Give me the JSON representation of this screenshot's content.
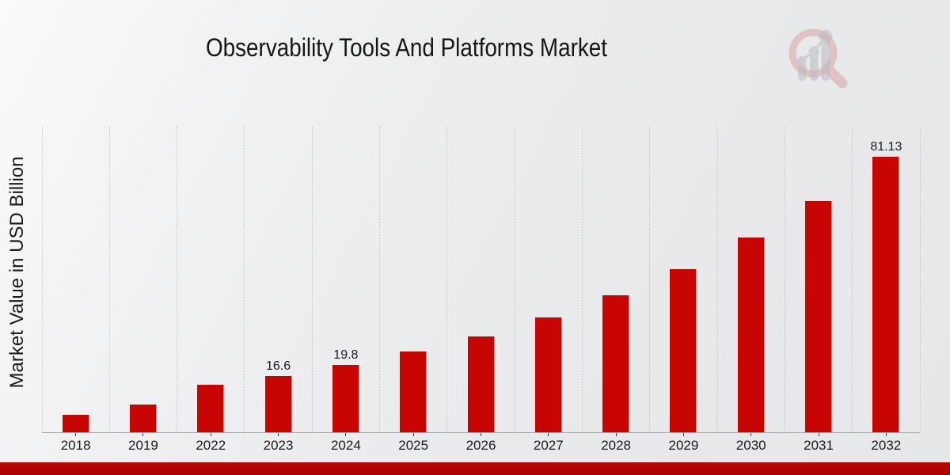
{
  "chart_data": {
    "type": "bar",
    "title": "Observability Tools And Platforms Market",
    "ylabel": "Market Value in USD Billion",
    "xlabel": "",
    "categories": [
      "2018",
      "2019",
      "2022",
      "2023",
      "2024",
      "2025",
      "2026",
      "2027",
      "2028",
      "2029",
      "2030",
      "2031",
      "2032"
    ],
    "values": [
      5.1,
      8.1,
      13.9,
      16.6,
      19.8,
      23.7,
      28.3,
      33.9,
      40.3,
      48.1,
      57.3,
      68.2,
      81.13
    ],
    "data_labels": [
      "",
      "",
      "",
      "16.6",
      "19.8",
      "",
      "",
      "",
      "",
      "",
      "",
      "",
      "81.13"
    ],
    "bar_color": "#c70603",
    "ylim": [
      0,
      90
    ],
    "grid": "vertical-dotted",
    "legend": "none"
  },
  "logo": {
    "name": "market-research-magnifier-logo",
    "ring_color": "#d59092",
    "bars_color": "#b9bac1"
  },
  "footer": {
    "accent_bar_color": "#b90602"
  }
}
